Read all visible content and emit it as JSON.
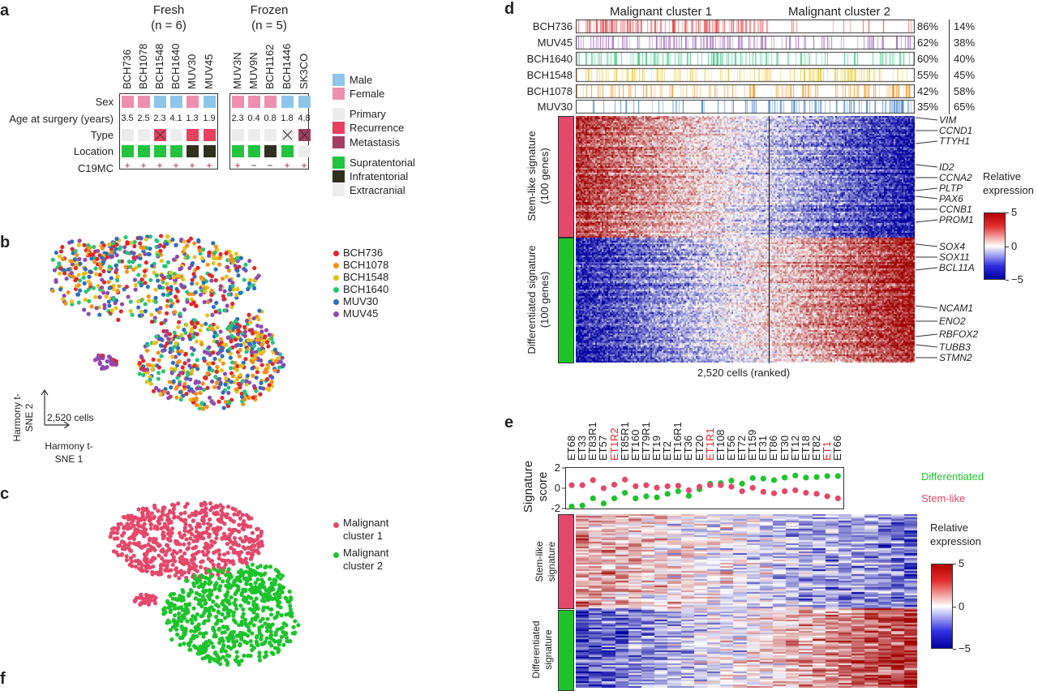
{
  "panels": {
    "a": "a",
    "b": "b",
    "c": "c",
    "d": "d",
    "e": "e",
    "f": "f"
  },
  "panel_a": {
    "fresh_title": "Fresh",
    "fresh_n": "(n = 6)",
    "frozen_title": "Frozen",
    "frozen_n": "(n = 5)",
    "row_labels": [
      "Sex",
      "Age at surgery (years)",
      "Type",
      "Location",
      "C19MC"
    ],
    "samples": [
      {
        "id": "BCH736",
        "group": "fresh",
        "sex": "Female",
        "age": "3.5",
        "type": "Primary",
        "crossed": false,
        "location": "Supratentorial",
        "c19mc": "+"
      },
      {
        "id": "BCH1078",
        "group": "fresh",
        "sex": "Female",
        "age": "2.5",
        "type": "Primary",
        "crossed": false,
        "location": "Supratentorial",
        "c19mc": "+"
      },
      {
        "id": "BCH1548",
        "group": "fresh",
        "sex": "Male",
        "age": "2.3",
        "type": "Recurrence",
        "crossed": true,
        "location": "Supratentorial",
        "c19mc": "+"
      },
      {
        "id": "BCH1640",
        "group": "fresh",
        "sex": "Male",
        "age": "4.1",
        "type": "Primary",
        "crossed": false,
        "location": "Supratentorial",
        "c19mc": "+"
      },
      {
        "id": "MUV30",
        "group": "fresh",
        "sex": "Female",
        "age": "1.3",
        "type": "Recurrence",
        "crossed": false,
        "location": "Infratentorial",
        "c19mc": "+"
      },
      {
        "id": "MUV45",
        "group": "fresh",
        "sex": "Male",
        "age": "1.9",
        "type": "Recurrence",
        "crossed": false,
        "location": "Infratentorial",
        "c19mc": "+"
      },
      {
        "id": "MUV3N",
        "group": "frozen",
        "sex": "Female",
        "age": "2.3",
        "type": "Primary",
        "crossed": false,
        "location": "Supratentorial",
        "c19mc": "+"
      },
      {
        "id": "MUV9N",
        "group": "frozen",
        "sex": "Female",
        "age": "0.4",
        "type": "Primary",
        "crossed": false,
        "location": "Supratentorial",
        "c19mc": "−"
      },
      {
        "id": "BCH1162",
        "group": "frozen",
        "sex": "Female",
        "age": "0.8",
        "type": "Primary",
        "crossed": false,
        "location": "Infratentorial",
        "c19mc": "−"
      },
      {
        "id": "BCH1446",
        "group": "frozen",
        "sex": "Male",
        "age": "1.8",
        "type": "Primary",
        "crossed": true,
        "location": "Supratentorial",
        "c19mc": "+"
      },
      {
        "id": "SK3CO",
        "group": "frozen",
        "sex": "Male",
        "age": "4.8",
        "type": "Metastasis",
        "crossed": true,
        "location": "Extracranial",
        "c19mc": "+"
      }
    ],
    "legend": [
      {
        "label": "Male",
        "color": "#8ec5ea"
      },
      {
        "label": "Female",
        "color": "#ee8fb0"
      },
      {
        "label": "Primary",
        "color": "#ececec"
      },
      {
        "label": "Recurrence",
        "color": "#e8415f"
      },
      {
        "label": "Metastasis",
        "color": "#a33d62"
      },
      {
        "label": "Supratentorial",
        "color": "#22c33e"
      },
      {
        "label": "Infratentorial",
        "color": "#30301f"
      },
      {
        "label": "Extracranial",
        "color": "#ececec"
      }
    ]
  },
  "chart_data": [
    {
      "type": "scatter",
      "panel": "b",
      "title": "",
      "xlabel": "Harmony t-SNE 1",
      "ylabel": "Harmony t-SNE 2",
      "annotation": "2,520 cells",
      "legend": [
        {
          "label": "BCH736",
          "color": "#e0262b"
        },
        {
          "label": "BCH1078",
          "color": "#f39019"
        },
        {
          "label": "BCH1548",
          "color": "#e5c21b"
        },
        {
          "label": "BCH1640",
          "color": "#27c47a"
        },
        {
          "label": "MUV30",
          "color": "#2a6fc0"
        },
        {
          "label": "MUV45",
          "color": "#8e4ab0"
        }
      ],
      "legend_position": "right"
    },
    {
      "type": "scatter",
      "panel": "c",
      "xlabel": "",
      "ylabel": "",
      "legend": [
        {
          "label": "Malignant cluster 1",
          "color": "#e4486a"
        },
        {
          "label": "Malignant cluster 2",
          "color": "#1ec32c"
        }
      ],
      "legend_position": "right"
    },
    {
      "type": "heatmap",
      "panel": "d",
      "column_groups": [
        "Malignant cluster 1",
        "Malignant cluster 2"
      ],
      "xlabel": "2,520 cells (ranked)",
      "sample_rows": [
        {
          "id": "BCH736",
          "cluster1": "86%",
          "cluster2": "14%",
          "color": "#e0262b"
        },
        {
          "id": "MUV45",
          "cluster1": "62%",
          "cluster2": "38%",
          "color": "#8e4ab0"
        },
        {
          "id": "BCH1640",
          "cluster1": "60%",
          "cluster2": "40%",
          "color": "#27c47a"
        },
        {
          "id": "BCH1548",
          "cluster1": "55%",
          "cluster2": "45%",
          "color": "#e5c21b"
        },
        {
          "id": "BCH1078",
          "cluster1": "42%",
          "cluster2": "58%",
          "color": "#f39019"
        },
        {
          "id": "MUV30",
          "cluster1": "35%",
          "cluster2": "65%",
          "color": "#2a6fc0"
        }
      ],
      "row_groups": [
        {
          "label": "Stem-like signature",
          "sub": "(100 genes)",
          "color": "#e4486a"
        },
        {
          "label": "Differentiated signature",
          "sub": "(100 genes)",
          "color": "#1ec32c"
        }
      ],
      "genes": [
        "VIM",
        "CCND1",
        "TTYH1",
        "ID2",
        "CCNA2",
        "PLTP",
        "PAX6",
        "CCNB1",
        "PROM1",
        "SOX4",
        "SOX11",
        "BCL11A",
        "NCAM1",
        "ENO2",
        "RBFOX2",
        "TUBB3",
        "STMN2"
      ],
      "colorbar": {
        "title1": "Relative",
        "title2": "expression",
        "ticks": [
          "5",
          "0",
          "−5"
        ],
        "range": [
          -5,
          5
        ]
      }
    },
    {
      "type": "scatter",
      "panel": "e",
      "ylabel1": "Signature",
      "ylabel2": "score",
      "ylim": [
        -2,
        2
      ],
      "yticks": [
        "2",
        "0",
        "-2"
      ],
      "categories": [
        "ET68",
        "ET33",
        "ET83R1",
        "ET57",
        "ET1R2",
        "ET85R1",
        "ET160",
        "ET79R1",
        "ET19",
        "ET2",
        "ET16R1",
        "ET36",
        "ET20",
        "ET1R1",
        "ET108",
        "ET56",
        "ET72",
        "ET159",
        "ET31",
        "ET86",
        "ET30",
        "ET12",
        "ET18",
        "ET82",
        "ET1",
        "ET66"
      ],
      "highlighted": [
        "ET1R2",
        "ET1R1",
        "ET1"
      ],
      "series": [
        {
          "name": "Differentiated",
          "color": "#1ec32c",
          "values": [
            -1.8,
            -1.7,
            -1.0,
            -1.5,
            -1.0,
            -0.45,
            -1.0,
            -0.8,
            -0.9,
            -0.55,
            -0.3,
            -0.75,
            -0.1,
            0.45,
            0.5,
            0.75,
            0.45,
            1.0,
            0.95,
            0.8,
            1.05,
            1.25,
            1.05,
            1.1,
            1.2,
            1.2
          ]
        },
        {
          "name": "Stem-like",
          "color": "#e4486a",
          "values": [
            0.3,
            0.3,
            0.8,
            0.0,
            0.35,
            0.85,
            0.2,
            0.3,
            0.05,
            0.2,
            0.25,
            -0.2,
            0.15,
            0.3,
            0.3,
            0.15,
            -0.3,
            0.05,
            -0.35,
            -0.5,
            -0.3,
            -0.2,
            -0.45,
            -0.55,
            -0.8,
            -1.0
          ]
        }
      ],
      "row_groups": [
        {
          "label": "Stem-like",
          "sub": "signature"
        },
        {
          "label": "Differentiated",
          "sub": "signature"
        }
      ],
      "colorbar": {
        "title1": "Relative",
        "title2": "expression",
        "ticks": [
          "5",
          "0",
          "−5"
        ],
        "range": [
          -5,
          5
        ]
      }
    }
  ]
}
